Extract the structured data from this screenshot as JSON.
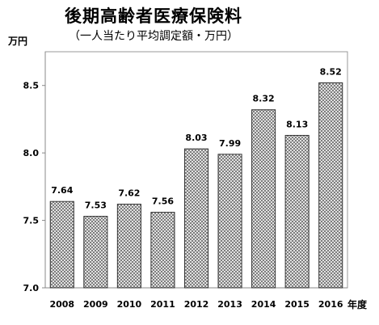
{
  "chart_data": {
    "type": "bar",
    "title": "後期高齢者医療保険料",
    "subtitle": "（一人当たり平均調定額・万円）",
    "ylabel": "万円",
    "xlabel": "年度",
    "categories": [
      "2008",
      "2009",
      "2010",
      "2011",
      "2012",
      "2013",
      "2014",
      "2015",
      "2016"
    ],
    "values": [
      7.64,
      7.53,
      7.62,
      7.56,
      8.03,
      7.99,
      8.32,
      8.13,
      8.52
    ],
    "value_labels": [
      "7.64",
      "7.53",
      "7.62",
      "7.56",
      "8.03",
      "7.99",
      "8.32",
      "8.13",
      "8.52"
    ],
    "ylim": [
      7.0,
      8.75
    ],
    "yticks": [
      7.0,
      7.5,
      8.0,
      8.5
    ],
    "ytick_labels": [
      "7.0",
      "7.5",
      "8.0",
      "8.5"
    ],
    "grid": false,
    "legend": "none",
    "bar_fill": "crosshatch",
    "colors": {
      "bar_pattern": "#6a6a6a",
      "bar_border": "#333333",
      "axis": "#888888"
    }
  }
}
